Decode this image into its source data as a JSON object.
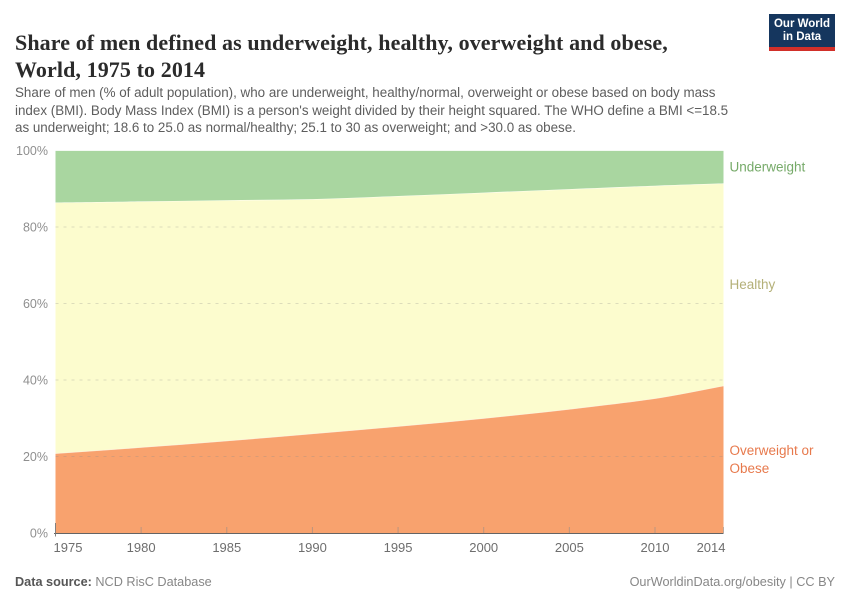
{
  "header": {
    "title_line1": "Share of men defined as underweight, healthy, overweight and obese,",
    "title_line2": "World, 1975 to 2014",
    "logo": {
      "line1": "Our World",
      "line2": "in Data",
      "bg_color": "#15365e",
      "stripe_color": "#d12f29"
    }
  },
  "subtitle": {
    "lines": [
      "Share of men (% of adult population), who are underweight, healthy/normal, overweight or obese based on body mass",
      "index (BMI). Body Mass Index (BMI) is a person's weight divided by their height squared. The WHO define a BMI <=18.5",
      "as underweight; 18.6 to 25.0 as normal/healthy; 25.1 to 30 as overweight; and >30.0 as obese."
    ]
  },
  "chart_data": {
    "type": "area",
    "stacked": true,
    "title": "Share of men defined as underweight, healthy, overweight and obese, World, 1975 to 2014",
    "xlabel": "",
    "ylabel": "",
    "y_unit": "%",
    "ylim": [
      0,
      100
    ],
    "grid": true,
    "legend_position": "right",
    "x": [
      1975,
      1980,
      1985,
      1990,
      1995,
      2000,
      2005,
      2010,
      2014
    ],
    "x_ticks": [
      1975,
      1980,
      1985,
      1990,
      1995,
      2000,
      2005,
      2010,
      2014
    ],
    "y_ticks": [
      0,
      20,
      40,
      60,
      80,
      100
    ],
    "series": [
      {
        "name": "Overweight or Obese",
        "label_lines": [
          "Overweight or",
          "Obese"
        ],
        "color": "#f8a26e",
        "label_color": "#e7794c",
        "values": [
          20.8,
          22.4,
          24.1,
          26.0,
          27.9,
          30.0,
          32.4,
          35.2,
          38.5
        ]
      },
      {
        "name": "Healthy",
        "label_lines": [
          "Healthy"
        ],
        "color": "#fcfcce",
        "label_color": "#b4b078",
        "values": [
          65.6,
          64.3,
          62.9,
          61.3,
          60.2,
          59.0,
          57.5,
          55.6,
          52.9
        ]
      },
      {
        "name": "Underweight",
        "label_lines": [
          "Underweight"
        ],
        "color": "#a9d6a0",
        "label_color": "#76aa69",
        "values": [
          13.6,
          13.3,
          13.0,
          12.7,
          11.9,
          11.0,
          10.1,
          9.2,
          8.6
        ]
      }
    ]
  },
  "footer": {
    "data_source_label": "Data source:",
    "data_source_value": "NCD RisC Database",
    "credit": "OurWorldinData.org/obesity | CC BY"
  }
}
